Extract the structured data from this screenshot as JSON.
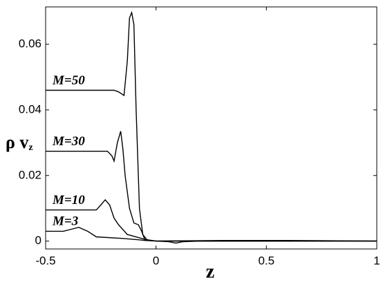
{
  "chart_data": {
    "type": "line",
    "x_label": "z",
    "y_label": "ρ v",
    "y_label_sub": "z",
    "xlim": [
      -0.5,
      1
    ],
    "ylim": [
      -0.0024,
      0.0714
    ],
    "xticks": [
      -0.5,
      0,
      0.5,
      1
    ],
    "yticks": [
      0,
      0.02,
      0.04,
      0.06
    ],
    "series": [
      {
        "name": "M=50",
        "color": "#000000",
        "x": [
          -0.5,
          -0.19,
          -0.17,
          -0.145,
          -0.13,
          -0.12,
          -0.11,
          -0.1,
          -0.09,
          -0.075,
          -0.06,
          -0.04,
          0,
          0.3,
          0.6,
          1
        ],
        "values": [
          0.046,
          0.046,
          0.0455,
          0.0444,
          0.055,
          0.068,
          0.0697,
          0.066,
          0.04,
          0.01,
          0.002,
          0.0003,
          0,
          0.0002,
          0.0002,
          0
        ]
      },
      {
        "name": "M=30",
        "color": "#000000",
        "x": [
          -0.5,
          -0.22,
          -0.2,
          -0.19,
          -0.175,
          -0.16,
          -0.15,
          -0.14,
          -0.12,
          -0.1,
          -0.08,
          -0.065,
          -0.05,
          0,
          1
        ],
        "values": [
          0.0274,
          0.0274,
          0.026,
          0.0244,
          0.03,
          0.0335,
          0.028,
          0.02,
          0.01,
          0.0055,
          0.005,
          0.003,
          0.0003,
          0,
          0
        ]
      },
      {
        "name": "M=10",
        "color": "#000000",
        "x": [
          -0.5,
          -0.27,
          -0.25,
          -0.23,
          -0.21,
          -0.19,
          -0.17,
          -0.13,
          -0.08,
          -0.05,
          0,
          1
        ],
        "values": [
          0.0095,
          0.0095,
          0.011,
          0.0126,
          0.011,
          0.007,
          0.005,
          0.002,
          0.0011,
          0.0005,
          0,
          0
        ]
      },
      {
        "name": "M=3",
        "color": "#000000",
        "x": [
          -0.5,
          -0.42,
          -0.39,
          -0.35,
          -0.31,
          -0.27,
          -0.15,
          -0.08,
          -0.05,
          0,
          0.06,
          0.09,
          0.12,
          0.2,
          1
        ],
        "values": [
          0.003,
          0.003,
          0.0035,
          0.0042,
          0.003,
          0.0013,
          0.0008,
          0.0004,
          0.0002,
          0,
          -0.0002,
          -0.0006,
          -0.0002,
          0,
          0
        ]
      }
    ]
  }
}
